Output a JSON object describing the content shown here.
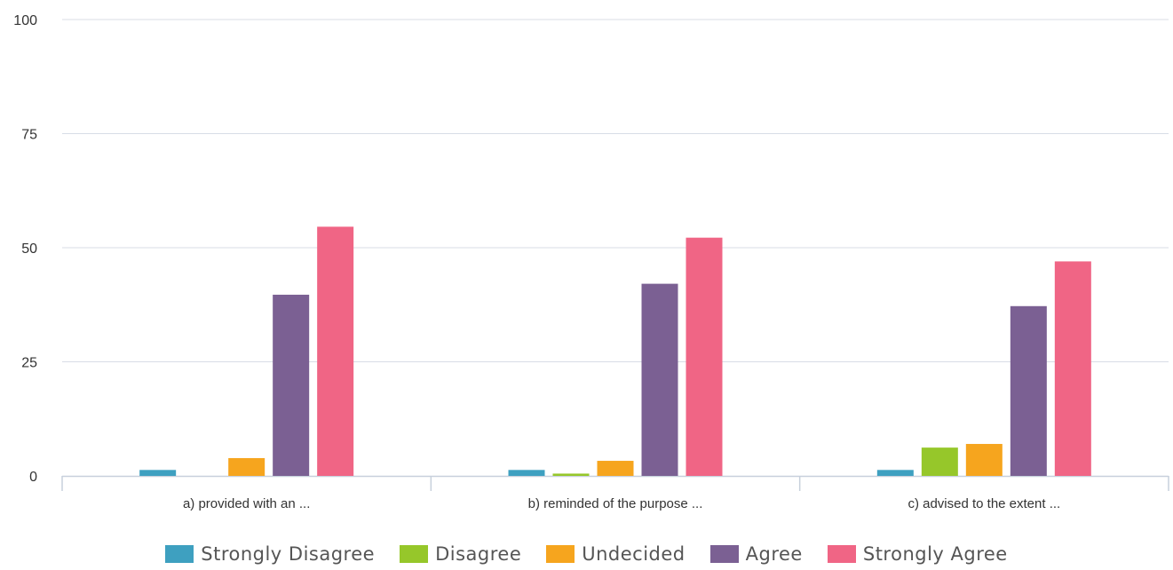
{
  "chart_data": {
    "type": "bar",
    "categories": [
      "a) provided with an ...",
      "b) reminded of the purpose ...",
      "c) advised to the extent ..."
    ],
    "series": [
      {
        "name": "Strongly Disagree",
        "color": "#3ea0c0",
        "values": [
          1.3,
          1.3,
          1.3
        ]
      },
      {
        "name": "Disagree",
        "color": "#96c72a",
        "values": [
          0,
          0.5,
          6.2
        ]
      },
      {
        "name": "Undecided",
        "color": "#f6a51e",
        "values": [
          3.9,
          3.3,
          7.0
        ]
      },
      {
        "name": "Agree",
        "color": "#7b6093",
        "values": [
          39.7,
          42.1,
          37.2
        ]
      },
      {
        "name": "Strongly Agree",
        "color": "#f06585",
        "values": [
          54.6,
          52.2,
          47.0
        ]
      }
    ],
    "ylim": [
      0,
      100
    ],
    "yticks": [
      "0",
      "25",
      "50",
      "75",
      "100"
    ],
    "grid": true,
    "legend_position": "bottom",
    "title": "",
    "xlabel": "",
    "ylabel": ""
  }
}
